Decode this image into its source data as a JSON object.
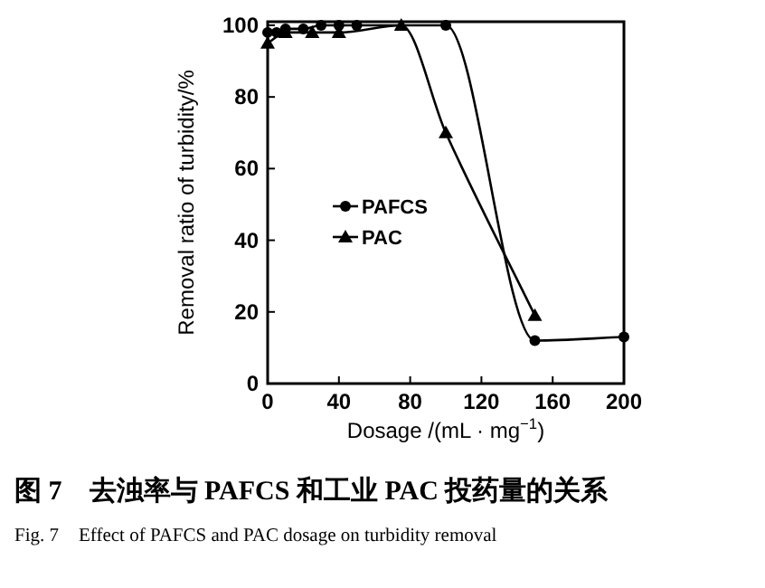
{
  "chart_data": {
    "type": "line",
    "title": "图 7　去浊率与 PAFCS 和工业 PAC 投药量的关系",
    "subtitle": "Fig. 7　Effect of PAFCS and PAC dosage on turbidity removal",
    "xlabel": "Dosage /(mL · mg$^{−1}$)",
    "ylabel": "Removal ratio of turbidity/%",
    "xlim": [
      0,
      200
    ],
    "ylim": [
      0,
      101
    ],
    "xticks": [
      0,
      40,
      80,
      120,
      160,
      200
    ],
    "yticks": [
      0,
      20,
      40,
      60,
      80,
      100
    ],
    "grid": false,
    "legend": "left",
    "line_style": "solid",
    "series": [
      {
        "name": "PAFCS",
        "color": "#000000",
        "marker": "circle",
        "x": [
          0,
          5,
          10,
          20,
          30,
          40,
          50,
          100,
          150,
          200
        ],
        "values": [
          98,
          98,
          99,
          99,
          100,
          100,
          100,
          100,
          12,
          13
        ]
      },
      {
        "name": "PAC",
        "color": "#000000",
        "marker": "triangle",
        "x": [
          0,
          10,
          25,
          40,
          75,
          100,
          150
        ],
        "values": [
          95,
          98,
          98,
          98,
          100,
          70,
          19
        ]
      }
    ]
  }
}
